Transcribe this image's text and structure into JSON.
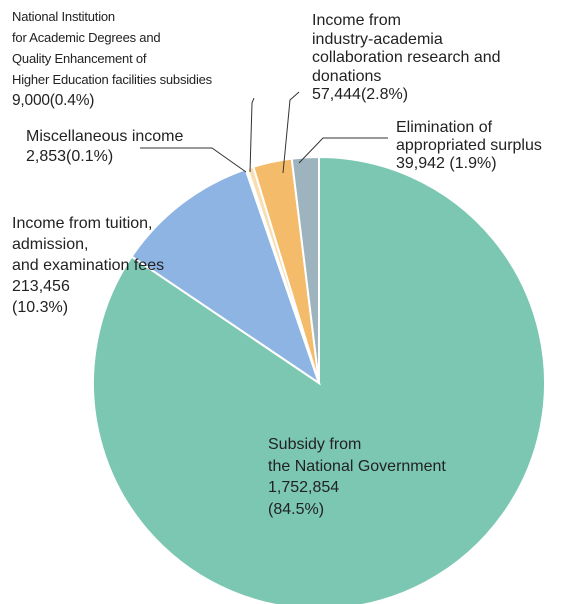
{
  "chart_data": {
    "type": "pie",
    "colors": {
      "subsidy": "#7CC7B2",
      "tuition": "#8EB4E3",
      "misc": "#E9B3A4",
      "niad": "#F8DDB0",
      "industry": "#F4BC6A",
      "surplus": "#9DB4BF",
      "edge": "#FFFFFF",
      "leader": "#333333"
    },
    "slices": [
      {
        "key": "subsidy",
        "label_lines": [
          "Subsidy from",
          "the National Government"
        ],
        "value": 1752854,
        "value_text": "1,752,854",
        "percent_text": "(84.5%)"
      },
      {
        "key": "tuition",
        "label_lines": [
          "Income from tuition,",
          "admission,",
          "and examination fees"
        ],
        "value": 213456,
        "value_text": "213,456",
        "percent_text": "(10.3%)"
      },
      {
        "key": "misc",
        "label_lines": [
          "Miscellaneous income"
        ],
        "value": 2853,
        "value_text": "2,853",
        "percent_text": "(0.1%)"
      },
      {
        "key": "niad",
        "label_lines": [
          "National Institution",
          "for Academic Degrees and",
          "Quality Enhancement of",
          "Higher Education facilities subsidies"
        ],
        "value": 9000,
        "value_text": "9,000",
        "percent_text": "(0.4%)"
      },
      {
        "key": "industry",
        "label_lines": [
          "Income from",
          "industry-academia",
          "collaboration research and",
          "donations"
        ],
        "value": 57444,
        "value_text": "57,444",
        "percent_text": "(2.8%)"
      },
      {
        "key": "surplus",
        "label_lines": [
          "Elimination of",
          "appropriated surplus"
        ],
        "value": 39942,
        "value_text": "39,942",
        "percent_text": "(1.9%)"
      }
    ]
  }
}
